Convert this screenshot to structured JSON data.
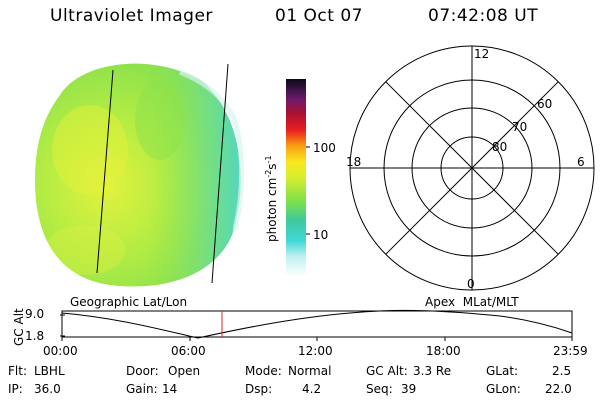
{
  "header": {
    "instrument": "Ultraviolet Imager",
    "date": "01 Oct 07",
    "time": "07:42:08 UT"
  },
  "colorbar": {
    "unit_main": "photon cm",
    "unit_sup1": "-2",
    "unit_mid": "s",
    "unit_sup2": "-1",
    "ticks": [
      "100",
      "10"
    ]
  },
  "polar_plot": {
    "mlt_labels": {
      "top": "12",
      "bottom": "0",
      "left": "18",
      "right": "6"
    },
    "lat_labels": [
      "60",
      "70",
      "80"
    ]
  },
  "timeline": {
    "left_title": "Geographic Lat/Lon",
    "right_title": "Apex  MLat/MLT",
    "y_axis_label": "GC Alt",
    "y_ticks": [
      "9.0",
      "1.8"
    ],
    "x_ticks": [
      "00:00",
      "06:00",
      "12:00",
      "18:00",
      "23:59"
    ]
  },
  "status": {
    "flt_label": "Flt:",
    "flt_value": "LBHL",
    "ip_label": "IP:",
    "ip_value": "36.0",
    "door_label": "Door:",
    "door_value": "Open",
    "gain_label": "Gain:",
    "gain_value": "14",
    "mode_label": "Mode:",
    "mode_value": "Normal",
    "dsp_label": "Dsp:",
    "dsp_value": "4.2",
    "gcalt_label": "GC Alt:",
    "gcalt_value": "3.3 Re",
    "seq_label": "Seq:",
    "seq_value": "39",
    "glat_label": "GLat:",
    "glat_value": "2.5",
    "glon_label": "GLon:",
    "glon_value": "22.0"
  },
  "colors": {
    "disk_green": "#9ee84a",
    "disk_yellow": "#d8f040",
    "disk_cyan": "#4fd8d0",
    "marker_red": "#e02020"
  }
}
